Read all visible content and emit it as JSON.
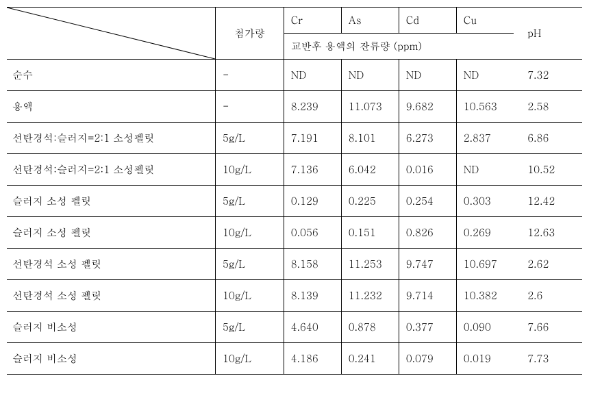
{
  "table": {
    "header": {
      "amount_label": "첨가량",
      "metal_cols": [
        "Cr",
        "As",
        "Cd",
        "Cu"
      ],
      "sub_label": "교반후 용액의 잔류량 (ppm)",
      "ph_label": "pH"
    },
    "rows": [
      {
        "label": "순수",
        "amount": "-",
        "cr": "ND",
        "as": "ND",
        "cd": "ND",
        "cu": "ND",
        "ph": "7.32"
      },
      {
        "label": "용액",
        "amount": "-",
        "cr": "8.239",
        "as": "11.073",
        "cd": "9.682",
        "cu": "10.563",
        "ph": "2.58"
      },
      {
        "label": "선탄경석:슬러지=2:1 소성펠릿",
        "amount": "5g/L",
        "cr": "7.191",
        "as": "8.101",
        "cd": "6.273",
        "cu": "2.837",
        "ph": "6.86"
      },
      {
        "label": "선탄경석:슬러지=2:1 소성펠릿",
        "amount": "10g/L",
        "cr": "7.136",
        "as": "6.042",
        "cd": "0.016",
        "cu": "ND",
        "ph": "10.52"
      },
      {
        "label": "슬러지 소성 펠릿",
        "amount": "5g/L",
        "cr": "0.129",
        "as": "0.225",
        "cd": "0.254",
        "cu": "0.303",
        "ph": "12.42"
      },
      {
        "label": "슬러지 소성 펠릿",
        "amount": "10g/L",
        "cr": "0.056",
        "as": "0.151",
        "cd": "0.826",
        "cu": "0.269",
        "ph": "12.63"
      },
      {
        "label": "선탄경석 소성 펠릿",
        "amount": "5g/L",
        "cr": "8.158",
        "as": "11.253",
        "cd": "9.747",
        "cu": "10.697",
        "ph": "2.62"
      },
      {
        "label": "선탄경석 소성 펠릿",
        "amount": "10g/L",
        "cr": "8.139",
        "as": "11.232",
        "cd": "9.714",
        "cu": "10.382",
        "ph": "2.6"
      },
      {
        "label": "슬러지 비소성",
        "amount": "5g/L",
        "cr": "4.640",
        "as": "0.878",
        "cd": "0.377",
        "cu": "0.090",
        "ph": "7.66"
      },
      {
        "label": "슬러지 비소성",
        "amount": "10g/L",
        "cr": "4.186",
        "as": "0.241",
        "cd": "0.079",
        "cu": "0.019",
        "ph": "7.73"
      }
    ]
  },
  "colors": {
    "border": "#000000",
    "text": "#000000",
    "background": "#ffffff"
  }
}
